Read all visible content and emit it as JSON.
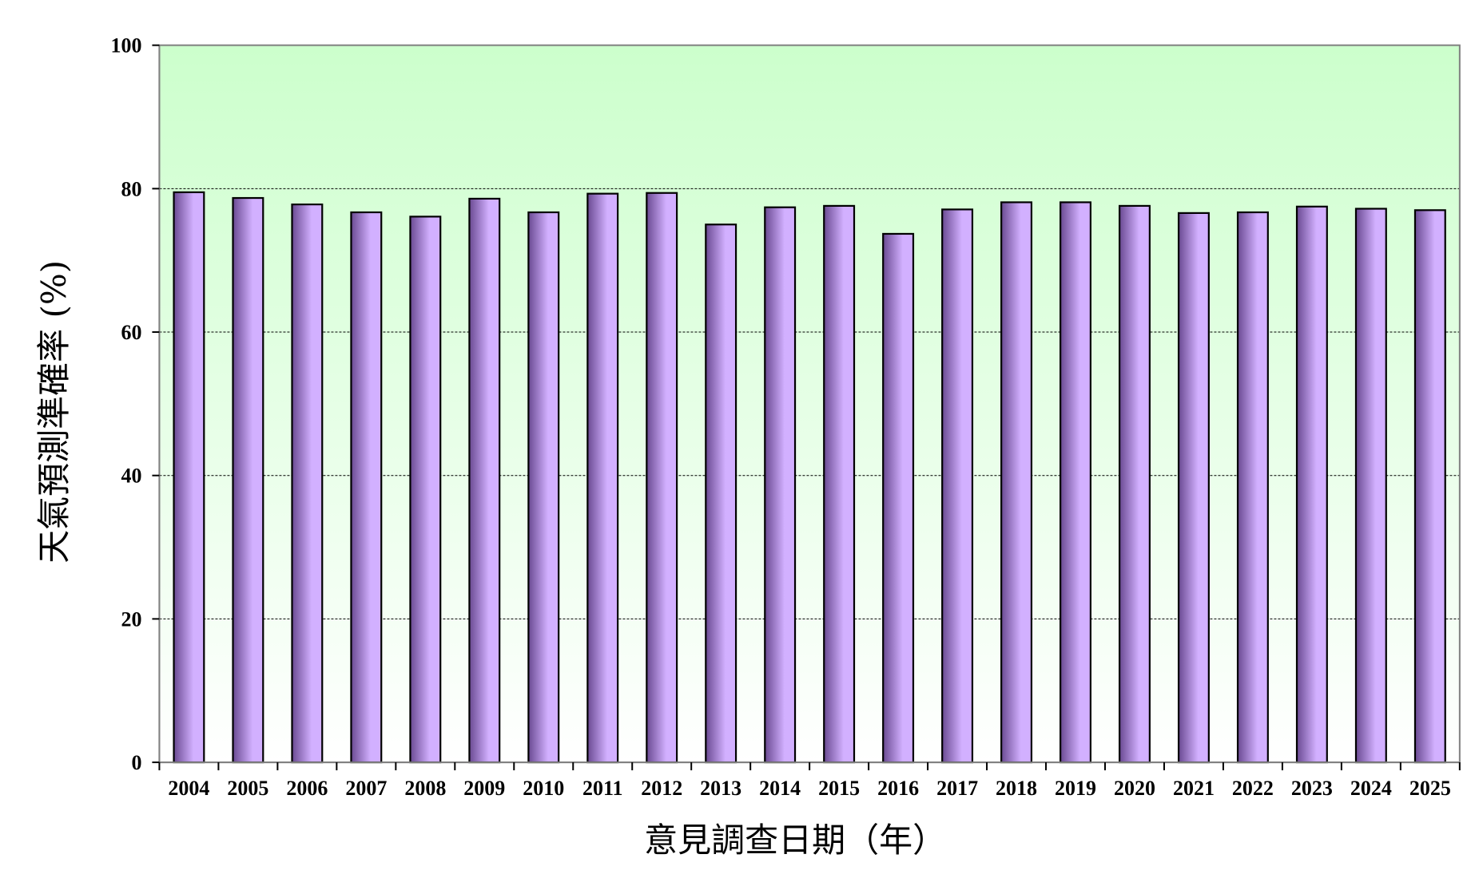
{
  "chart_data": {
    "type": "bar",
    "title": "",
    "xlabel": "意見調查日期（年）",
    "ylabel": "天氣預測準確率 (%)",
    "categories": [
      "2004",
      "2005",
      "2006",
      "2007",
      "2008",
      "2009",
      "2010",
      "2011",
      "2012",
      "2013",
      "2014",
      "2015",
      "2016",
      "2017",
      "2018",
      "2019",
      "2020",
      "2021",
      "2022",
      "2023",
      "2024",
      "2025"
    ],
    "values": [
      79.5,
      78.7,
      77.8,
      76.7,
      76.1,
      78.6,
      76.7,
      79.3,
      79.4,
      75.0,
      77.4,
      77.6,
      73.7,
      77.1,
      78.1,
      78.1,
      77.6,
      76.6,
      76.7,
      77.5,
      77.2,
      77.0
    ],
    "ylim": [
      0,
      100
    ],
    "yticks": [
      0,
      20,
      40,
      60,
      80,
      100
    ],
    "grid": true,
    "legend": "none",
    "colors": {
      "bar_dark": "#6a4a92",
      "bar_light": "#d2b0ff",
      "bar_outline": "#000000",
      "band_top": "#ccffcc",
      "band_bottom": "#ffffff",
      "axis": "#808080"
    }
  }
}
